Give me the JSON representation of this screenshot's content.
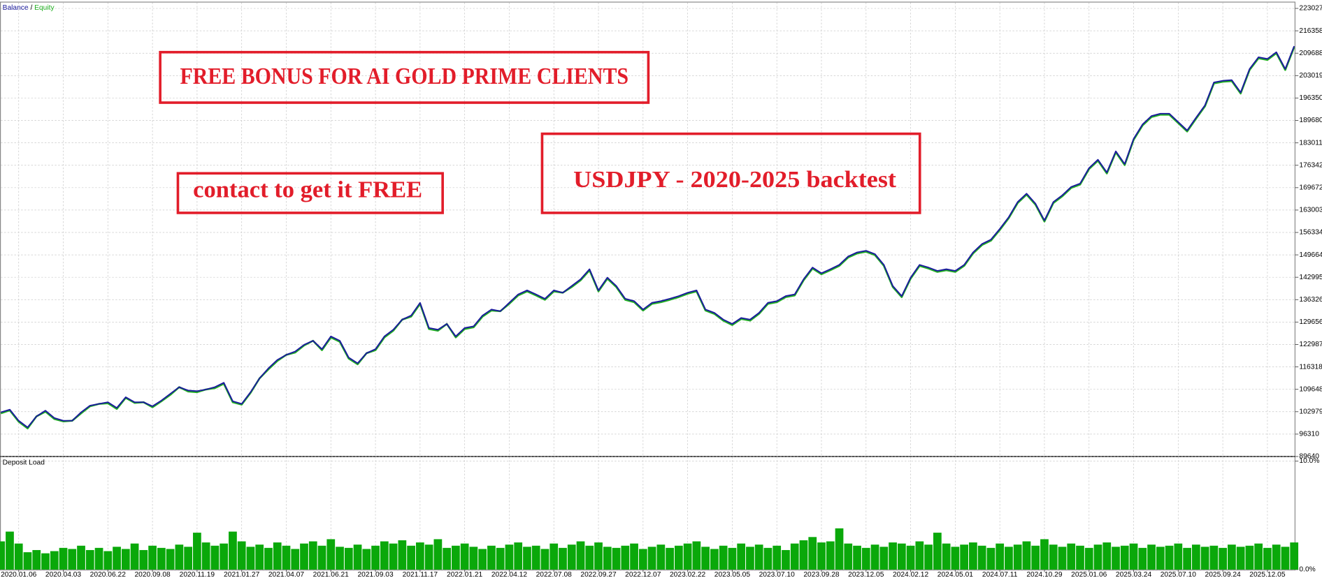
{
  "chart_data": [
    {
      "type": "line",
      "legend_separator": "/",
      "categories": [
        null,
        null,
        "2020.01.06",
        null,
        null,
        null,
        null,
        "2020.04.03",
        null,
        null,
        null,
        null,
        "2020.06.22",
        null,
        null,
        null,
        null,
        "2020.09.08",
        null,
        null,
        null,
        null,
        "2020.11.19",
        null,
        null,
        null,
        null,
        "2021.01.27",
        null,
        null,
        null,
        null,
        "2021.04.07",
        null,
        null,
        null,
        null,
        "2021.06.21",
        null,
        null,
        null,
        null,
        "2021.09.03",
        null,
        null,
        null,
        null,
        "2021.11.17",
        null,
        null,
        null,
        null,
        "2022.01.21",
        null,
        null,
        null,
        null,
        "2022.04.12",
        null,
        null,
        null,
        null,
        "2022.07.08",
        null,
        null,
        null,
        null,
        "2022.09.27",
        null,
        null,
        null,
        null,
        "2022.12.07",
        null,
        null,
        null,
        null,
        "2023.02.22",
        null,
        null,
        null,
        null,
        "2023.05.05",
        null,
        null,
        null,
        null,
        "2023.07.10",
        null,
        null,
        null,
        null,
        "2023.09.28",
        null,
        null,
        null,
        null,
        "2023.12.05",
        null,
        null,
        null,
        null,
        "2024.02.12",
        null,
        null,
        null,
        null,
        "2024.05.01",
        null,
        null,
        null,
        null,
        "2024.07.11",
        null,
        null,
        null,
        null,
        "2024.10.29",
        null,
        null,
        null,
        null,
        "2025.01.06",
        null,
        null,
        null,
        null,
        "2025.03.24",
        null,
        null,
        null,
        null,
        "2025.07.10",
        null,
        null,
        null,
        null,
        "2025.09.24",
        null,
        null,
        null,
        null,
        "2025.12.05",
        null,
        null,
        null
      ],
      "series": [
        {
          "name": "Balance",
          "color": "#1a1a9c",
          "values": [
            102800,
            103600,
            100300,
            98300,
            101600,
            103300,
            101100,
            100300,
            100300,
            102800,
            104800,
            105300,
            105800,
            104100,
            107300,
            105800,
            105800,
            104600,
            106300,
            108300,
            110300,
            109300,
            109100,
            109600,
            110300,
            111600,
            106100,
            105300,
            108800,
            112900,
            115900,
            118400,
            119900,
            120900,
            122900,
            124100,
            121600,
            125400,
            124100,
            119100,
            117400,
            120400,
            121600,
            125400,
            127400,
            130400,
            131600,
            135400,
            127900,
            127400,
            129100,
            125400,
            127900,
            128400,
            131600,
            133400,
            132900,
            135400,
            137900,
            139100,
            137900,
            136600,
            139100,
            138400,
            140400,
            142400,
            145400,
            139100,
            142900,
            140400,
            136600,
            135900,
            133400,
            135400,
            135900,
            136600,
            137400,
            138400,
            139100,
            133400,
            132400,
            130400,
            129100,
            130900,
            130400,
            132400,
            135400,
            135900,
            137400,
            137900,
            142400,
            145900,
            144200,
            145400,
            146700,
            149200,
            150400,
            150900,
            149900,
            146700,
            140400,
            137400,
            142900,
            146700,
            145900,
            144900,
            145400,
            144900,
            146700,
            150400,
            152900,
            154200,
            157400,
            160900,
            165400,
            167900,
            164900,
            159900,
            165400,
            167400,
            169900,
            170900,
            175500,
            178000,
            174200,
            180500,
            176700,
            184200,
            188500,
            191000,
            191700,
            191700,
            189200,
            186700,
            190500,
            194200,
            201000,
            201500,
            201700,
            198000,
            205000,
            208500,
            208000,
            210000,
            205000,
            211800
          ]
        },
        {
          "name": "Equity",
          "color": "#22b022",
          "values": [
            102500,
            103400,
            100000,
            98000,
            101600,
            103000,
            100800,
            100100,
            100300,
            102500,
            104600,
            105300,
            105500,
            103800,
            107100,
            105600,
            105800,
            104300,
            106100,
            108000,
            110300,
            109000,
            108800,
            109600,
            110000,
            111300,
            105800,
            105100,
            108600,
            112900,
            115600,
            118100,
            119900,
            120600,
            122700,
            124100,
            121300,
            125100,
            123800,
            118800,
            117100,
            120400,
            121300,
            125100,
            127100,
            130400,
            131300,
            135100,
            127600,
            127100,
            129100,
            125100,
            127600,
            128100,
            131300,
            133100,
            132900,
            135100,
            137600,
            138800,
            137600,
            136300,
            138800,
            138400,
            140100,
            142100,
            145100,
            138800,
            142600,
            140100,
            136300,
            135600,
            133100,
            135100,
            135600,
            136300,
            137100,
            138100,
            138800,
            133100,
            132100,
            130100,
            128800,
            130600,
            130100,
            132100,
            135100,
            135600,
            137100,
            137600,
            142100,
            145600,
            143900,
            145100,
            146400,
            148900,
            150100,
            150600,
            149600,
            146400,
            140100,
            137100,
            142600,
            146400,
            145600,
            144600,
            145100,
            144600,
            146400,
            150100,
            152600,
            153900,
            157100,
            160600,
            165100,
            167600,
            164600,
            159600,
            165100,
            167100,
            169600,
            170600,
            175200,
            177700,
            173900,
            180200,
            176400,
            183900,
            188200,
            190700,
            191400,
            191400,
            188900,
            186400,
            190200,
            193900,
            200700,
            201200,
            201400,
            197700,
            204700,
            208200,
            207700,
            209700,
            204700,
            211500
          ]
        }
      ],
      "ylim": [
        89640,
        224780
      ],
      "yticks": [
        89640,
        96310,
        102979,
        109648,
        116318,
        122987,
        129656,
        136326,
        142995,
        149664,
        156334,
        163003,
        169672,
        176342,
        183011,
        189680,
        196350,
        203019,
        209688,
        216358,
        223027
      ],
      "grid": true,
      "annotations": [
        "FREE BONUS FOR AI GOLD PRIME CLIENTS",
        "contact to get it FREE",
        "USDJPY - 2020-2025 backtest"
      ]
    },
    {
      "type": "bar",
      "title": "Deposit Load",
      "color": "#0aa80a",
      "values": [
        2.6,
        3.5,
        2.4,
        1.6,
        1.8,
        1.5,
        1.7,
        2.0,
        1.9,
        2.2,
        1.8,
        2.0,
        1.7,
        2.1,
        1.9,
        2.4,
        1.8,
        2.2,
        2.0,
        1.9,
        2.3,
        2.1,
        3.4,
        2.5,
        2.2,
        2.4,
        3.5,
        2.6,
        2.1,
        2.3,
        2.0,
        2.5,
        2.2,
        1.9,
        2.4,
        2.6,
        2.2,
        2.8,
        2.1,
        2.0,
        2.3,
        1.9,
        2.2,
        2.6,
        2.4,
        2.7,
        2.2,
        2.5,
        2.3,
        2.8,
        2.0,
        2.2,
        2.4,
        2.1,
        1.9,
        2.2,
        2.0,
        2.3,
        2.5,
        2.1,
        2.2,
        1.9,
        2.4,
        2.0,
        2.3,
        2.6,
        2.2,
        2.5,
        2.1,
        2.0,
        2.2,
        2.4,
        1.9,
        2.1,
        2.3,
        2.0,
        2.2,
        2.4,
        2.6,
        2.1,
        1.9,
        2.2,
        2.0,
        2.4,
        2.1,
        2.3,
        2.0,
        2.2,
        1.8,
        2.4,
        2.7,
        3.0,
        2.5,
        2.6,
        3.8,
        2.4,
        2.2,
        2.0,
        2.3,
        2.1,
        2.5,
        2.4,
        2.2,
        2.6,
        2.3,
        3.4,
        2.4,
        2.1,
        2.3,
        2.5,
        2.2,
        2.0,
        2.4,
        2.1,
        2.3,
        2.6,
        2.2,
        2.8,
        2.3,
        2.1,
        2.4,
        2.2,
        2.0,
        2.3,
        2.5,
        2.1,
        2.2,
        2.4,
        2.0,
        2.3,
        2.1,
        2.2,
        2.4,
        2.0,
        2.3,
        2.1,
        2.2,
        2.0,
        2.3,
        2.1,
        2.2,
        2.4,
        2.0,
        2.3,
        2.1,
        2.5
      ],
      "ylim": [
        0,
        10
      ],
      "yticks": [
        {
          "value": 10,
          "label": "10.0%"
        },
        {
          "value": 0,
          "label": "0.0%"
        }
      ],
      "grid": true
    }
  ]
}
